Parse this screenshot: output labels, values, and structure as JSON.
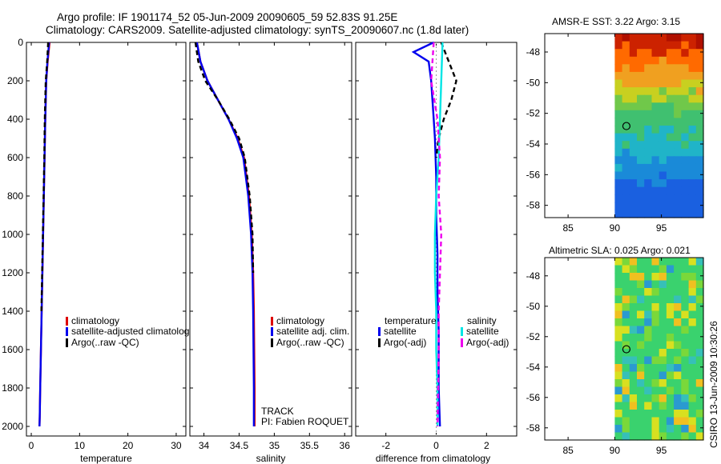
{
  "header": {
    "line1": "Argo profile: IF 1901174_52 05-Jun-2009 20090605_59 52.83S 91.25E",
    "line2": "Climatology: CARS2009. Satellite-adjusted climatology: synTS_20090607.nc (1.8d later)"
  },
  "footer_stamp": "CSIRO 13-Jun-2009 10:30:26",
  "colors": {
    "climatology": "#dd0000",
    "satellite": "#0000ee",
    "argo": "#000000",
    "sal_satellite": "#00e5e5",
    "sal_argo": "#ee00ee"
  },
  "chart_data": [
    {
      "type": "line",
      "xlabel": "temperature",
      "xticks": [
        0,
        10,
        20,
        30
      ],
      "xlim": [
        -1,
        32
      ],
      "ylim": [
        2050,
        0
      ],
      "yticks": [
        0,
        200,
        400,
        600,
        800,
        1000,
        1200,
        1400,
        1600,
        1800,
        2000
      ],
      "legend": [
        "climatology",
        "satellite-adjusted climatolog",
        "Argo(..raw -QC)"
      ],
      "series": [
        {
          "name": "climatology",
          "color": "#dd0000",
          "x": [
            3.8,
            3.4,
            3.1,
            2.9,
            2.75,
            2.6,
            2.45,
            2.3,
            2.15,
            2.0,
            1.85,
            1.75,
            1.7
          ],
          "y": [
            0,
            100,
            200,
            400,
            600,
            800,
            1000,
            1200,
            1400,
            1600,
            1800,
            1950,
            2000
          ]
        },
        {
          "name": "satellite-adjusted climatolog",
          "color": "#0000ee",
          "x": [
            3.7,
            3.35,
            3.1,
            2.9,
            2.75,
            2.6,
            2.45,
            2.3,
            2.15,
            2.0,
            1.85,
            1.75,
            1.7
          ],
          "y": [
            0,
            100,
            200,
            400,
            600,
            800,
            1000,
            1200,
            1400,
            1600,
            1800,
            1950,
            2000
          ]
        },
        {
          "name": "Argo(..raw -QC)",
          "color": "#000000",
          "dashed": true,
          "x": [
            3.5,
            3.3,
            3.0,
            2.8,
            2.7,
            2.55,
            2.4,
            2.25,
            2.1
          ],
          "y": [
            0,
            100,
            200,
            400,
            600,
            800,
            1000,
            1200,
            1400
          ]
        }
      ]
    },
    {
      "type": "line",
      "xlabel": "salinity",
      "xticks": [
        34,
        34.5,
        35,
        35.5,
        36
      ],
      "xtick_labels": [
        "34",
        "34.5",
        "35",
        "35.5",
        "36"
      ],
      "xlim": [
        33.8,
        36.1
      ],
      "ylim": [
        2050,
        0
      ],
      "legend": [
        "climatology",
        "satellite adj. clim.",
        "Argo(..raw -QC)"
      ],
      "annotation": [
        "TRACK",
        "PI: Fabien ROQUET"
      ],
      "series": [
        {
          "name": "climatology",
          "color": "#dd0000",
          "x": [
            33.9,
            33.95,
            34.05,
            34.2,
            34.35,
            34.48,
            34.57,
            34.64,
            34.68,
            34.7,
            34.71,
            34.72,
            34.72
          ],
          "y": [
            0,
            100,
            200,
            300,
            400,
            500,
            600,
            800,
            1000,
            1200,
            1400,
            1800,
            2000
          ]
        },
        {
          "name": "satellite adj. clim.",
          "color": "#0000ee",
          "x": [
            33.9,
            33.95,
            34.05,
            34.2,
            34.35,
            34.47,
            34.56,
            34.63,
            34.67,
            34.69,
            34.7,
            34.71,
            34.71
          ],
          "y": [
            0,
            100,
            200,
            300,
            400,
            500,
            600,
            800,
            1000,
            1200,
            1400,
            1800,
            2000
          ]
        },
        {
          "name": "Argo(..raw -QC)",
          "color": "#000000",
          "dashed": true,
          "x": [
            33.88,
            33.92,
            34.02,
            34.2,
            34.36,
            34.5,
            34.58,
            34.65,
            34.69,
            34.7
          ],
          "y": [
            0,
            100,
            200,
            300,
            400,
            500,
            600,
            800,
            1000,
            1200
          ]
        }
      ]
    },
    {
      "type": "line",
      "xlabel": "difference from climatology",
      "xticks": [
        -2,
        0,
        2
      ],
      "xlim": [
        -3.2,
        3.2
      ],
      "ylim": [
        2050,
        0
      ],
      "legend_headers": [
        "temperature",
        "salinity"
      ],
      "legend": [
        "satellite",
        "Argo(-adj)",
        "satellite",
        "Argo(-adj)"
      ],
      "series": [
        {
          "name": "temperature satellite",
          "color": "#0000ee",
          "x": [
            -0.1,
            -0.9,
            -0.3,
            -0.2,
            -0.15,
            -0.1,
            -0.05,
            0,
            0,
            0.05,
            0.05,
            0.1,
            0.1,
            0.15
          ],
          "y": [
            0,
            50,
            100,
            200,
            300,
            400,
            500,
            700,
            900,
            1100,
            1300,
            1500,
            1800,
            2000
          ]
        },
        {
          "name": "temperature Argo(-adj)",
          "color": "#000000",
          "dashed": true,
          "x": [
            0.2,
            0.5,
            0.8,
            0.6,
            0.3,
            0.1,
            0.0
          ],
          "y": [
            0,
            100,
            200,
            300,
            400,
            500,
            600
          ]
        },
        {
          "name": "salinity satellite",
          "color": "#00e5e5",
          "x": [
            0.25,
            0.2,
            0.15,
            0.1,
            0.0,
            -0.05,
            -0.05,
            0.0,
            0.0,
            0.05,
            0.05
          ],
          "y": [
            0,
            200,
            400,
            600,
            800,
            1000,
            1200,
            1400,
            1600,
            1800,
            2000
          ]
        },
        {
          "name": "salinity Argo(-adj)",
          "color": "#ee00ee",
          "dashed": true,
          "x": [
            -0.1,
            -0.2,
            0.05,
            0.15,
            0.1,
            0.2,
            0.15,
            0.1,
            0.1,
            0.05
          ],
          "y": [
            0,
            200,
            400,
            600,
            800,
            1000,
            1200,
            1400,
            1600,
            2000
          ]
        }
      ]
    },
    {
      "type": "heatmap",
      "title": "AMSR-E SST: 3.22 Argo: 3.15",
      "xticks": [
        85,
        90,
        95
      ],
      "yticks": [
        -48,
        -50,
        -52,
        -54,
        -56,
        -58
      ],
      "xlim": [
        82.5,
        99.5
      ],
      "ylim": [
        -58.8,
        -46.8
      ],
      "data_xlim": [
        90,
        99.5
      ],
      "argo_position": {
        "lon": 91.25,
        "lat": -52.83
      },
      "color_bands": [
        {
          "lat": -47,
          "color": "#b01000"
        },
        {
          "lat": -48,
          "color": "#cc2200"
        },
        {
          "lat": -49,
          "color": "#ff6a00"
        },
        {
          "lat": -50,
          "color": "#f0a020"
        },
        {
          "lat": -51,
          "color": "#c8d020"
        },
        {
          "lat": -52,
          "color": "#70c84a"
        },
        {
          "lat": -53.5,
          "color": "#40c070"
        },
        {
          "lat": -55,
          "color": "#20b4c8"
        },
        {
          "lat": -56.5,
          "color": "#1a8ad8"
        },
        {
          "lat": -58.5,
          "color": "#1a60e0"
        }
      ]
    },
    {
      "type": "heatmap",
      "title": "Altimetric SLA: 0.025 Argo: 0.021",
      "xticks": [
        85,
        90,
        95
      ],
      "yticks": [
        -48,
        -50,
        -52,
        -54,
        -56,
        -58
      ],
      "xlim": [
        82.5,
        99.5
      ],
      "ylim": [
        -58.8,
        -46.8
      ],
      "data_xlim": [
        90,
        99.5
      ],
      "argo_position": {
        "lon": 91.25,
        "lat": -52.83
      },
      "base_color": "#3ad26e"
    }
  ]
}
